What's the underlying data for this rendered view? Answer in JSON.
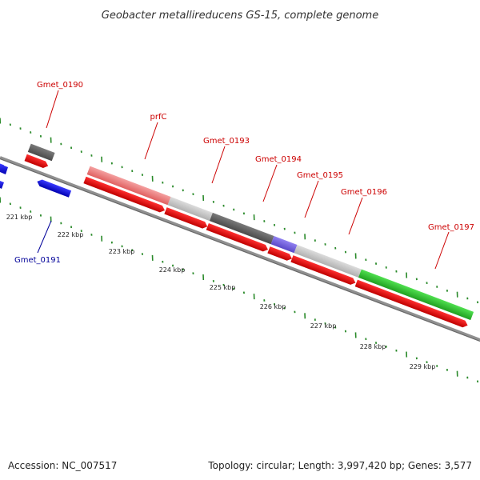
{
  "title": "Geobacter metallireducens GS-15, complete genome",
  "footer": {
    "accession": "Accession: NC_007517",
    "topology": "Topology: circular; Length: 3,997,420 bp; Genes: 3,577"
  },
  "colors": {
    "forward_label": "#cc0000",
    "reverse_label": "#000099",
    "cds_forward": "#ee0000",
    "cds_reverse": "#1010ee",
    "gene_pink": "#f08080",
    "gene_lightgray": "#c8c8c8",
    "gene_darkgray": "#666666",
    "gene_purple": "#7a6ae0",
    "gene_green": "#33cc33",
    "backbone": "#808080",
    "tick": "#2a8a2a"
  },
  "scale_labels": [
    "221 kbp",
    "222 kbp",
    "223 kbp",
    "224 kbp",
    "225 kbp",
    "226 kbp",
    "227 kbp",
    "228 kbp",
    "229 kbp"
  ],
  "gene_labels": {
    "Gmet_0190": "Gmet_0190",
    "Gmet_0191": "Gmet_0191",
    "prfC": "prfC",
    "Gmet_0193": "Gmet_0193",
    "Gmet_0194": "Gmet_0194",
    "Gmet_0195": "Gmet_0195",
    "Gmet_0196": "Gmet_0196",
    "Gmet_0197": "Gmet_0197"
  }
}
